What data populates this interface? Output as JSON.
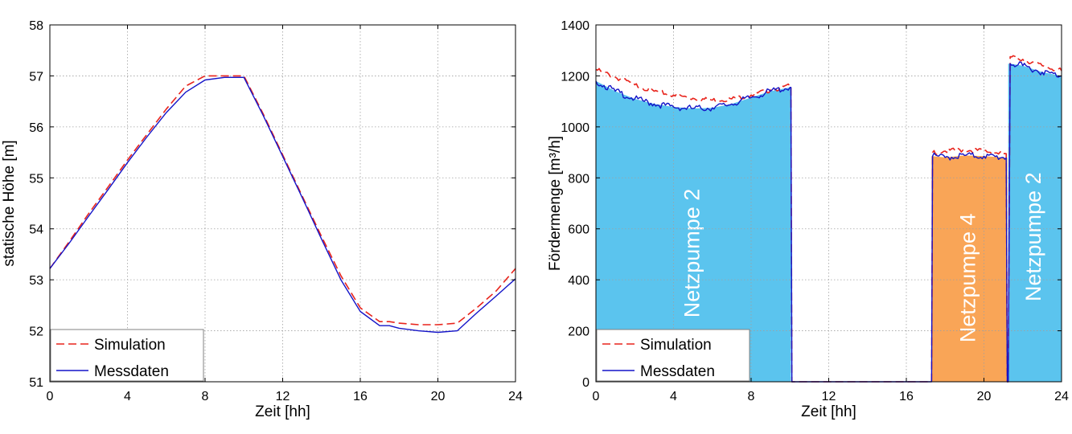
{
  "chart_data": [
    {
      "type": "line",
      "xlabel": "Zeit [hh]",
      "ylabel": "statische Höhe [m]",
      "xlim": [
        0,
        24
      ],
      "ylim": [
        51,
        58
      ],
      "xticks": [
        "0",
        "4",
        "8",
        "12",
        "16",
        "20",
        "24"
      ],
      "yticks": [
        "51",
        "52",
        "53",
        "54",
        "55",
        "56",
        "57",
        "58"
      ],
      "grid": true,
      "legend": "bottom-left",
      "series": [
        {
          "name": "Simulation",
          "style": "dashed",
          "color": "#e8241c",
          "x": [
            0,
            1,
            2,
            3,
            4,
            5,
            6,
            7,
            8,
            9,
            10,
            11,
            12,
            13,
            14,
            15,
            16,
            17,
            17.5,
            18,
            19,
            20,
            21,
            22,
            23,
            24
          ],
          "y": [
            53.22,
            53.75,
            54.3,
            54.82,
            55.35,
            55.85,
            56.35,
            56.8,
            57.0,
            57.0,
            57.0,
            56.25,
            55.45,
            54.65,
            53.85,
            53.08,
            52.45,
            52.18,
            52.18,
            52.15,
            52.12,
            52.12,
            52.15,
            52.45,
            52.78,
            53.22
          ]
        },
        {
          "name": "Messdaten",
          "style": "solid",
          "color": "#1414c8",
          "x": [
            0,
            1,
            2,
            3,
            4,
            5,
            6,
            7,
            8,
            9,
            10,
            11,
            12,
            13,
            14,
            15,
            16,
            17,
            17.5,
            18,
            19,
            20,
            21,
            22,
            23,
            24
          ],
          "y": [
            53.22,
            53.72,
            54.25,
            54.77,
            55.3,
            55.8,
            56.28,
            56.68,
            56.92,
            56.97,
            56.97,
            56.22,
            55.42,
            54.62,
            53.8,
            53.0,
            52.38,
            52.1,
            52.1,
            52.05,
            52.0,
            51.97,
            52.0,
            52.35,
            52.68,
            53.02
          ]
        }
      ]
    },
    {
      "type": "area",
      "xlabel": "Zeit [hh]",
      "ylabel": "Fördermenge [m³/h]",
      "xlim": [
        0,
        24
      ],
      "ylim": [
        0,
        1400
      ],
      "xticks": [
        "0",
        "4",
        "8",
        "12",
        "16",
        "20",
        "24"
      ],
      "yticks": [
        "0",
        "200",
        "400",
        "600",
        "800",
        "1000",
        "1200",
        "1400"
      ],
      "grid": true,
      "legend": "bottom-left",
      "regions": [
        {
          "label": "Netzpumpe 2",
          "color": "#5bc4ee",
          "x": [
            0,
            10.05
          ]
        },
        {
          "label": "Netzpumpe 4",
          "color": "#f9a557",
          "x": [
            17.3,
            21.2
          ]
        },
        {
          "label": "Netzpumpe 2",
          "color": "#5bc4ee",
          "x": [
            21.25,
            24
          ]
        }
      ],
      "series": [
        {
          "name": "Simulation",
          "style": "dashed",
          "color": "#e8241c",
          "x": [
            0,
            1,
            2,
            3,
            4,
            5,
            6,
            7,
            8,
            9,
            10,
            10.05,
            10.1,
            17.2,
            17.3,
            17.35,
            18,
            19,
            20,
            21,
            21.15,
            21.2,
            21.25,
            21.35,
            22,
            23,
            24
          ],
          "y": [
            1225,
            1195,
            1165,
            1140,
            1125,
            1112,
            1105,
            1110,
            1125,
            1145,
            1160,
            1160,
            0,
            0,
            0,
            900,
            905,
            910,
            905,
            895,
            895,
            0,
            0,
            1275,
            1265,
            1240,
            1220
          ]
        },
        {
          "name": "Messdaten",
          "style": "solid",
          "color": "#1414c8",
          "x": [
            0,
            1,
            2,
            3,
            4,
            5,
            6,
            7,
            8,
            9,
            10,
            10.05,
            10.1,
            17.2,
            17.3,
            17.35,
            18,
            19,
            20,
            21,
            21.15,
            21.2,
            21.25,
            21.35,
            22,
            23,
            24
          ],
          "y": [
            1180,
            1140,
            1110,
            1090,
            1078,
            1072,
            1075,
            1090,
            1115,
            1140,
            1155,
            1155,
            0,
            0,
            0,
            885,
            880,
            888,
            885,
            880,
            878,
            0,
            0,
            1248,
            1240,
            1215,
            1200
          ]
        }
      ]
    }
  ]
}
